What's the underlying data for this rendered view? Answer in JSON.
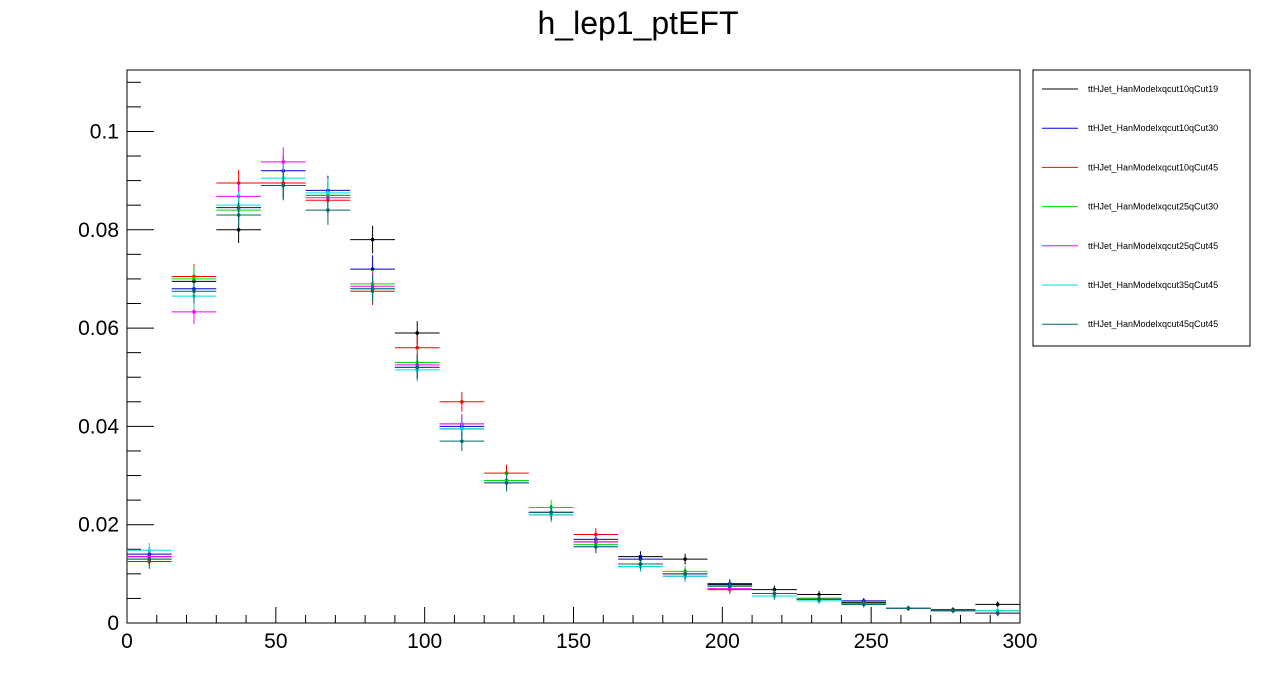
{
  "chart_data": {
    "type": "line",
    "title": "h_lep1_ptEFT",
    "xlabel": "",
    "ylabel": "",
    "xlim": [
      0,
      300
    ],
    "ylim": [
      0,
      0.1125
    ],
    "grid": false,
    "legend_position": "right",
    "x_ticks": [
      "0",
      "50",
      "100",
      "150",
      "200",
      "250",
      "300"
    ],
    "y_ticks": [
      "0",
      "0.02",
      "0.04",
      "0.06",
      "0.08",
      "0.1"
    ],
    "bin_edges": [
      0,
      15,
      30,
      45,
      60,
      75,
      90,
      105,
      120,
      135,
      150,
      165,
      180,
      195,
      210,
      225,
      240,
      255,
      270,
      285,
      300
    ],
    "series": [
      {
        "name": "ttHJet_HanModelxqcut10qCut19",
        "color": "#000000",
        "values": [
          0.0135,
          0.0695,
          0.08,
          0.0895,
          0.087,
          0.078,
          0.059,
          0.0395,
          0.029,
          0.0225,
          0.0165,
          0.0135,
          0.013,
          0.0078,
          0.0068,
          0.0058,
          0.0042,
          0.003,
          0.0027,
          0.0038
        ],
        "errors": [
          0.0015,
          0.0025,
          0.0027,
          0.003,
          0.003,
          0.0028,
          0.0024,
          0.002,
          0.0017,
          0.0015,
          0.0013,
          0.0011,
          0.0011,
          0.0009,
          0.0008,
          0.0007,
          0.0006,
          0.0005,
          0.0005,
          0.0006
        ]
      },
      {
        "name": "ttHJet_HanModelxqcut10qCut30",
        "color": "#0000cc",
        "values": [
          0.014,
          0.068,
          0.0845,
          0.092,
          0.088,
          0.072,
          0.052,
          0.04,
          0.029,
          0.0225,
          0.017,
          0.013,
          0.01,
          0.008,
          0.006,
          0.005,
          0.0045,
          0.003,
          0.0025,
          0.002
        ],
        "errors": [
          0.0015,
          0.0025,
          0.0027,
          0.003,
          0.003,
          0.0028,
          0.0024,
          0.002,
          0.0017,
          0.0015,
          0.0013,
          0.0011,
          0.0011,
          0.0009,
          0.0008,
          0.0007,
          0.0006,
          0.0005,
          0.0005,
          0.0006
        ]
      },
      {
        "name": "ttHJet_HanModelxqcut10qCut45",
        "color": "#ff0000",
        "values": [
          0.0125,
          0.0705,
          0.0895,
          0.0895,
          0.086,
          0.0675,
          0.056,
          0.045,
          0.0305,
          0.022,
          0.018,
          0.012,
          0.01,
          0.0068,
          0.0055,
          0.005,
          0.004,
          0.003,
          0.0025,
          0.002
        ],
        "errors": [
          0.0015,
          0.0025,
          0.0027,
          0.003,
          0.003,
          0.0028,
          0.0024,
          0.002,
          0.0017,
          0.0015,
          0.0013,
          0.0011,
          0.0011,
          0.0009,
          0.0008,
          0.0007,
          0.0006,
          0.0005,
          0.0005,
          0.0006
        ]
      },
      {
        "name": "ttHJet_HanModelxqcut25qCut30",
        "color": "#00dd00",
        "values": [
          0.013,
          0.07,
          0.084,
          0.089,
          0.087,
          0.069,
          0.053,
          0.0405,
          0.029,
          0.0235,
          0.016,
          0.012,
          0.0105,
          0.0075,
          0.006,
          0.005,
          0.004,
          0.003,
          0.0025,
          0.0025
        ],
        "errors": [
          0.0015,
          0.0025,
          0.0027,
          0.003,
          0.003,
          0.0028,
          0.0024,
          0.002,
          0.0017,
          0.0015,
          0.0013,
          0.0011,
          0.0011,
          0.0009,
          0.0008,
          0.0007,
          0.0006,
          0.0005,
          0.0005,
          0.0006
        ]
      },
      {
        "name": "ttHJet_HanModelxqcut25qCut45",
        "color": "#ff00ff",
        "values": [
          0.0135,
          0.0633,
          0.0868,
          0.0938,
          0.0865,
          0.0685,
          0.0525,
          0.0405,
          0.0285,
          0.0225,
          0.0165,
          0.0115,
          0.0095,
          0.007,
          0.0055,
          0.0048,
          0.0038,
          0.003,
          0.0025,
          0.002
        ],
        "errors": [
          0.0015,
          0.0025,
          0.0027,
          0.003,
          0.003,
          0.0028,
          0.0024,
          0.002,
          0.0017,
          0.0015,
          0.0013,
          0.0011,
          0.0011,
          0.0009,
          0.0008,
          0.0007,
          0.0006,
          0.0005,
          0.0005,
          0.0006
        ]
      },
      {
        "name": "ttHJet_HanModelxqcut35qCut45",
        "color": "#00dddd",
        "values": [
          0.0148,
          0.0665,
          0.085,
          0.0905,
          0.0875,
          0.068,
          0.0515,
          0.0395,
          0.0285,
          0.022,
          0.0155,
          0.0115,
          0.0095,
          0.0075,
          0.0055,
          0.0045,
          0.0038,
          0.003,
          0.0025,
          0.0025
        ],
        "errors": [
          0.0015,
          0.0025,
          0.0027,
          0.003,
          0.003,
          0.0028,
          0.0024,
          0.002,
          0.0017,
          0.0015,
          0.0013,
          0.0011,
          0.0011,
          0.0009,
          0.0008,
          0.0007,
          0.0006,
          0.0005,
          0.0005,
          0.0006
        ]
      },
      {
        "name": "ttHJet_HanModelxqcut45qCut45",
        "color": "#006666",
        "values": [
          0.013,
          0.0675,
          0.083,
          0.089,
          0.084,
          0.068,
          0.052,
          0.037,
          0.0285,
          0.0225,
          0.0155,
          0.012,
          0.01,
          0.0075,
          0.006,
          0.0048,
          0.0038,
          0.003,
          0.0025,
          0.002
        ],
        "errors": [
          0.0015,
          0.0025,
          0.0027,
          0.003,
          0.003,
          0.0028,
          0.0024,
          0.002,
          0.0017,
          0.0015,
          0.0013,
          0.0011,
          0.0011,
          0.0009,
          0.0008,
          0.0007,
          0.0006,
          0.0005,
          0.0005,
          0.0006
        ]
      }
    ]
  }
}
